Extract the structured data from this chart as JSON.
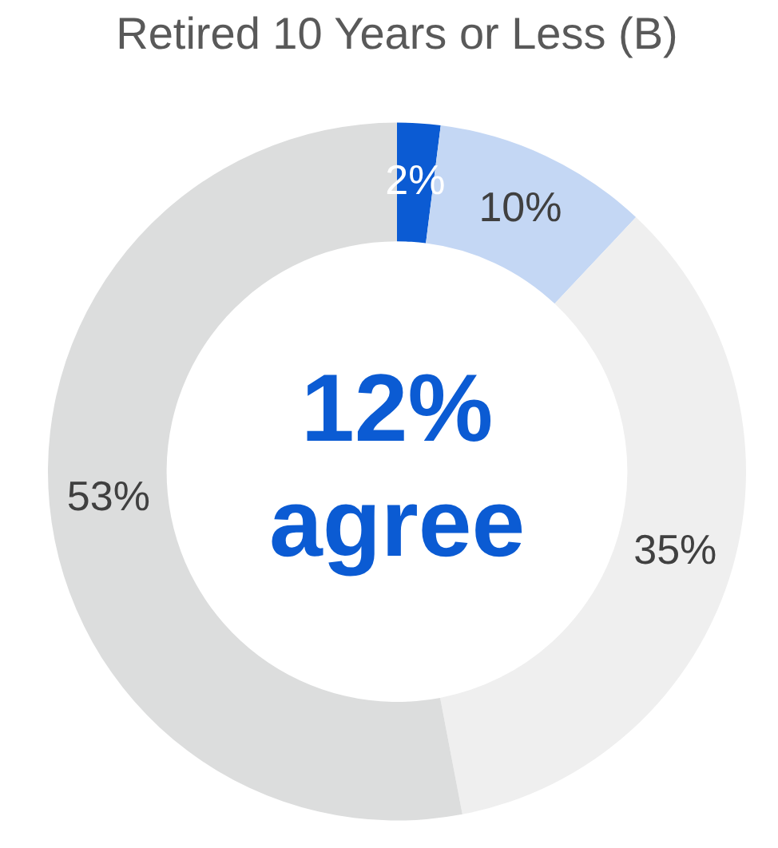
{
  "chart_data": {
    "type": "donut",
    "title": "Retired 10 Years or Less (B)",
    "categories": [
      null,
      null,
      null,
      null
    ],
    "values": [
      2,
      10,
      35,
      53
    ],
    "colors": [
      "#0b5bd3",
      "#c4d7f4",
      "#efefef",
      "#dcdddd"
    ],
    "value_labels": [
      "2%",
      "10%",
      "35%",
      "53%"
    ],
    "annotations": [
      "12%",
      "agree"
    ],
    "legend": false
  }
}
